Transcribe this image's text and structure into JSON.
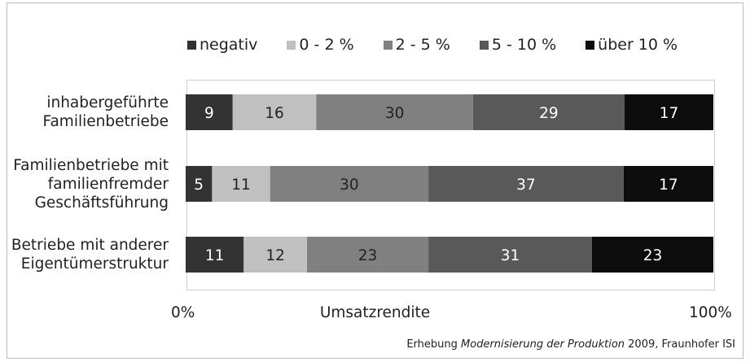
{
  "chart_data": {
    "type": "bar",
    "orientation": "horizontal",
    "stacked": true,
    "categories": [
      [
        "inhabergeführte",
        "Familienbetriebe"
      ],
      [
        "Familienbetriebe mit",
        "familienfremder",
        "Geschäftsführung"
      ],
      [
        "Betriebe mit anderer",
        "Eigentümerstruktur"
      ]
    ],
    "series": [
      {
        "name": "negativ",
        "color": "#333333",
        "label_color": "#ffffff",
        "values": [
          9,
          5,
          11
        ]
      },
      {
        "name": "0 - 2 %",
        "color": "#c0c0c0",
        "label_color": "#222222",
        "values": [
          16,
          11,
          12
        ]
      },
      {
        "name": "2 - 5 %",
        "color": "#808080",
        "label_color": "#222222",
        "values": [
          30,
          30,
          23
        ]
      },
      {
        "name": "5 - 10 %",
        "color": "#595959",
        "label_color": "#ffffff",
        "values": [
          29,
          37,
          31
        ]
      },
      {
        "name": "über 10 %",
        "color": "#0d0d0d",
        "label_color": "#ffffff",
        "values": [
          17,
          17,
          23
        ]
      }
    ],
    "xlim": [
      0,
      100
    ],
    "xlabel": "Umsatzrendite",
    "x_tick_min_label": "0%",
    "x_tick_max_label": "100%",
    "legend_position": "top",
    "grid": false
  },
  "source": {
    "prefix": "Erhebung ",
    "italic": "Modernisierung der Produktion",
    "suffix": " 2009, Fraunhofer ISI"
  }
}
